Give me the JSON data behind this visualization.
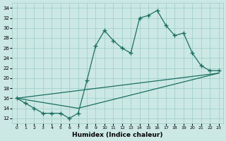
{
  "bg_color": "#cce8e4",
  "grid_color": "#99ccc8",
  "line_color": "#1a6e60",
  "xlabel": "Humidex (Indice chaleur)",
  "xlim": [
    -0.5,
    23.5
  ],
  "ylim": [
    11,
    35
  ],
  "yticks": [
    12,
    14,
    16,
    18,
    20,
    22,
    24,
    26,
    28,
    30,
    32,
    34
  ],
  "xticks": [
    0,
    1,
    2,
    3,
    4,
    5,
    6,
    7,
    8,
    9,
    10,
    11,
    12,
    13,
    14,
    15,
    16,
    17,
    18,
    19,
    20,
    21,
    22,
    23
  ],
  "line1_x": [
    0,
    1,
    2,
    3,
    4,
    5,
    6,
    7,
    8,
    9,
    10,
    11,
    12,
    13,
    14,
    15,
    16,
    17,
    18,
    19,
    20,
    21,
    22,
    23
  ],
  "line1_y": [
    16,
    15,
    14,
    13,
    13,
    13,
    12,
    13,
    19.5,
    26.5,
    29.5,
    27.5,
    26,
    25,
    32,
    32.5,
    33.5,
    30.5,
    28.5,
    29,
    25,
    22.5,
    21.5,
    21.5
  ],
  "line2_x": [
    0,
    7,
    23
  ],
  "line2_y": [
    16,
    14,
    21
  ],
  "line3_x": [
    0,
    23
  ],
  "line3_y": [
    16,
    21
  ]
}
